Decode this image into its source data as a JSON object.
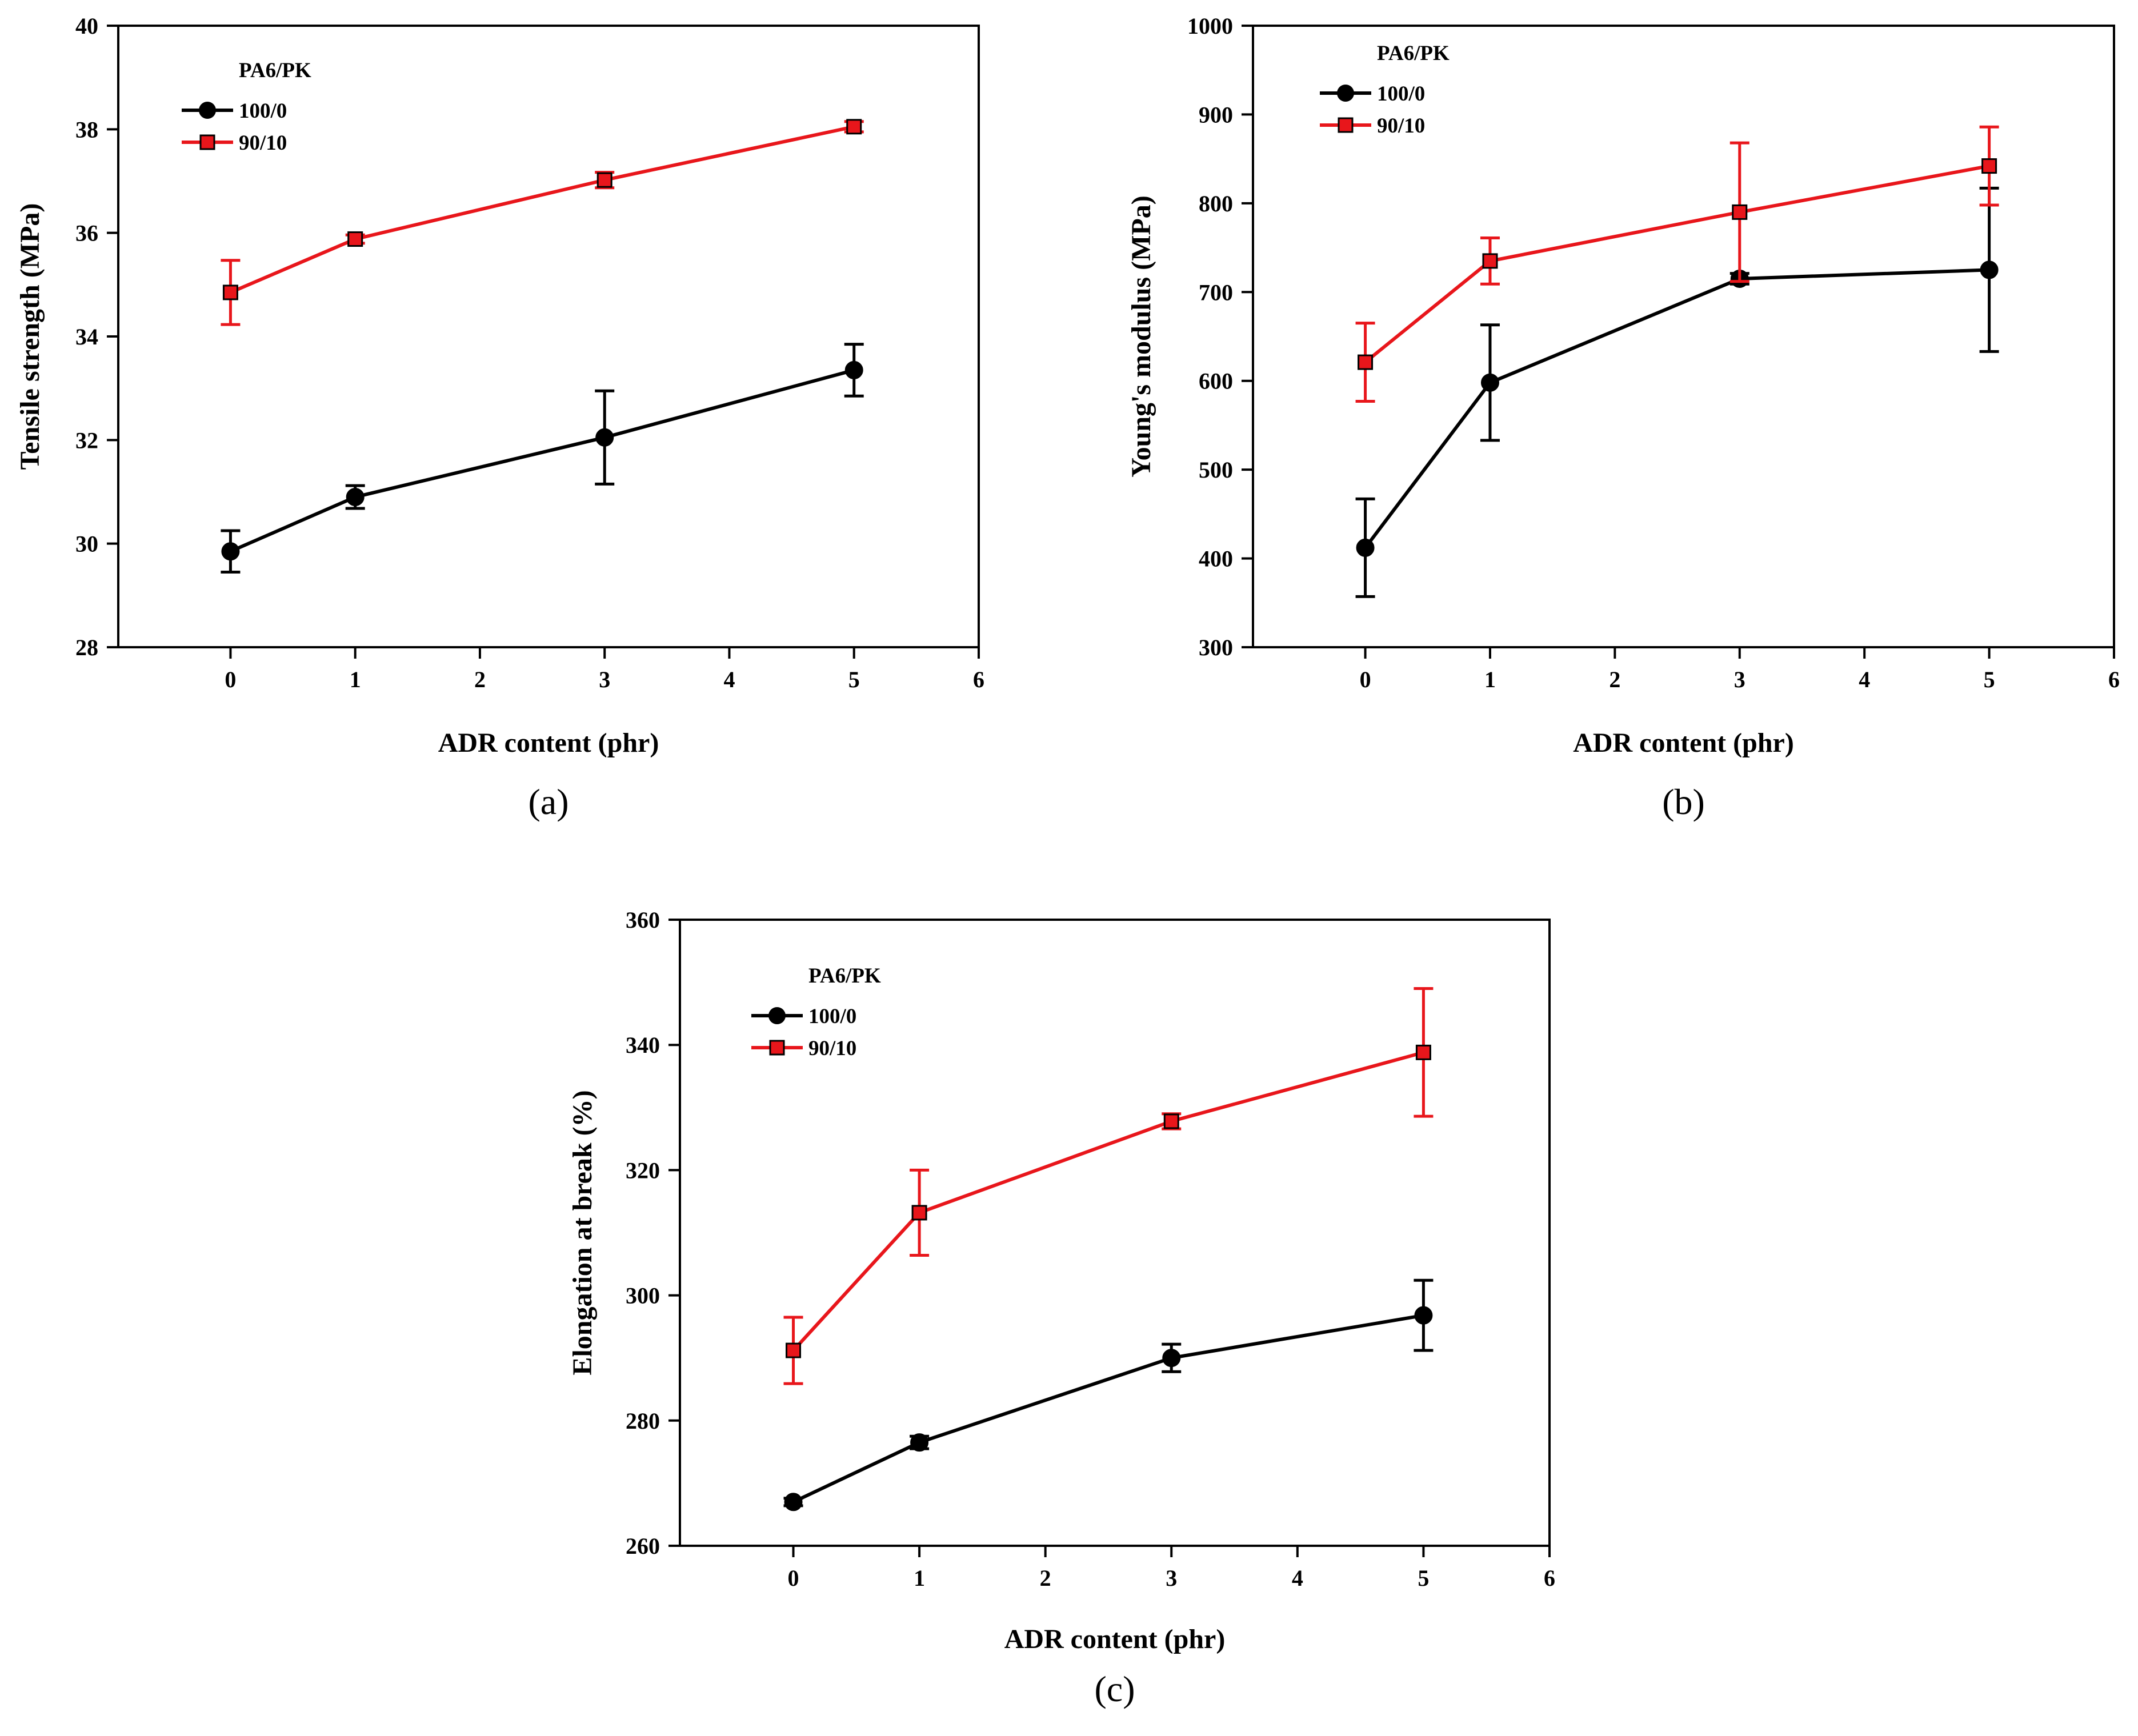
{
  "colors": {
    "series_100_0": "#000000",
    "series_90_10": "#e8161b",
    "marker_fill_90_10": "#e8161b",
    "marker_edge_90_10": "#000000"
  },
  "chart_data": [
    {
      "id": "a",
      "type": "line",
      "panel_label": "(a)",
      "xlabel": "ADR content (phr)",
      "ylabel": "Tensile strength (MPa)",
      "xlim": [
        -0.9,
        6
      ],
      "ylim": [
        28,
        40
      ],
      "xticks": [
        0,
        1,
        2,
        3,
        4,
        5,
        6
      ],
      "yticks": [
        28,
        30,
        32,
        34,
        36,
        38,
        40
      ],
      "legend": {
        "title": "PA6/PK",
        "position": "top-left"
      },
      "series": [
        {
          "name": "100/0",
          "marker": "circle",
          "color": "#000000",
          "x": [
            0,
            1,
            3,
            5
          ],
          "y": [
            29.85,
            30.9,
            32.05,
            33.35
          ],
          "err": [
            0.4,
            0.22,
            0.9,
            0.5
          ]
        },
        {
          "name": "90/10",
          "marker": "square",
          "color": "#e8161b",
          "x": [
            0,
            1,
            3,
            5
          ],
          "y": [
            34.85,
            35.88,
            37.02,
            38.05
          ],
          "err": [
            0.62,
            0.08,
            0.15,
            0.1
          ]
        }
      ]
    },
    {
      "id": "b",
      "type": "line",
      "panel_label": "(b)",
      "xlabel": "ADR content (phr)",
      "ylabel": "Young's modulus (MPa)",
      "xlim": [
        -0.9,
        6
      ],
      "ylim": [
        300,
        1000
      ],
      "xticks": [
        0,
        1,
        2,
        3,
        4,
        5,
        6
      ],
      "yticks": [
        300,
        400,
        500,
        600,
        700,
        800,
        900,
        1000
      ],
      "legend": {
        "title": "PA6/PK",
        "position": "top-left"
      },
      "series": [
        {
          "name": "100/0",
          "marker": "circle",
          "color": "#000000",
          "x": [
            0,
            1,
            3,
            5
          ],
          "y": [
            412,
            598,
            715,
            725
          ],
          "err": [
            55,
            65,
            6,
            92
          ]
        },
        {
          "name": "90/10",
          "marker": "square",
          "color": "#e8161b",
          "x": [
            0,
            1,
            3,
            5
          ],
          "y": [
            621,
            735,
            790,
            842
          ],
          "err": [
            44,
            26,
            78,
            44
          ]
        }
      ]
    },
    {
      "id": "c",
      "type": "line",
      "panel_label": "(c)",
      "xlabel": "ADR content (phr)",
      "ylabel": "Elongation at break (%)",
      "xlim": [
        -0.9,
        6
      ],
      "ylim": [
        260,
        360
      ],
      "xticks": [
        0,
        1,
        2,
        3,
        4,
        5,
        6
      ],
      "yticks": [
        260,
        280,
        300,
        320,
        340,
        360
      ],
      "legend": {
        "title": "PA6/PK",
        "position": "top-left"
      },
      "series": [
        {
          "name": "100/0",
          "marker": "circle",
          "color": "#000000",
          "x": [
            0,
            1,
            3,
            5
          ],
          "y": [
            267,
            276.5,
            290,
            296.8
          ],
          "err": [
            0.6,
            1.0,
            2.2,
            5.6
          ]
        },
        {
          "name": "90/10",
          "marker": "square",
          "color": "#e8161b",
          "x": [
            0,
            1,
            3,
            5
          ],
          "y": [
            291.2,
            313.2,
            327.8,
            338.8
          ],
          "err": [
            5.3,
            6.8,
            1.2,
            10.2
          ]
        }
      ]
    }
  ]
}
